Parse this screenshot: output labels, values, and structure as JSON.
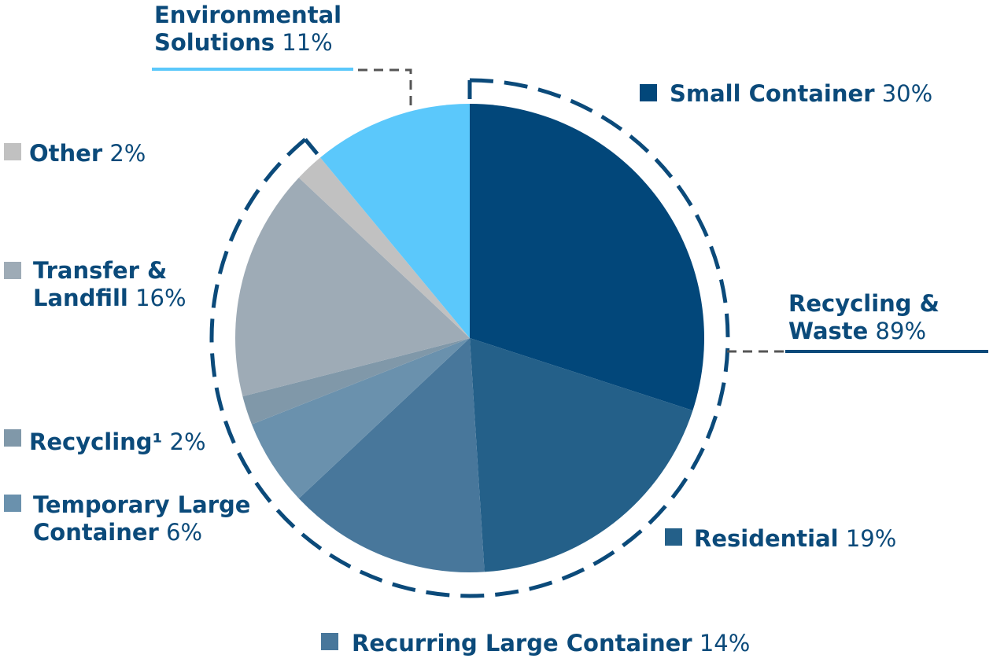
{
  "chart_data": {
    "type": "pie",
    "start": "12 o'clock, clockwise",
    "slices": [
      {
        "label": "Small Container",
        "value": 30,
        "display": "30%",
        "color": "#02477a"
      },
      {
        "label": "Residential",
        "value": 19,
        "display": "19%",
        "color": "#246089"
      },
      {
        "label": "Recurring Large Container",
        "value": 14,
        "display": "14%",
        "color": "#48779b"
      },
      {
        "label": "Temporary Large Container",
        "value": 6,
        "display": "6%",
        "color": "#6a91ad"
      },
      {
        "label": "Recycling¹",
        "value": 2,
        "display": "2%",
        "color": "#8098a9"
      },
      {
        "label": "Transfer & Landfill",
        "value": 16,
        "display": "16%",
        "color": "#9eabb6"
      },
      {
        "label": "Other",
        "value": 2,
        "display": "2%",
        "color": "#c1c1c1"
      },
      {
        "label": "Environmental Solutions",
        "value": 11,
        "display": "11%",
        "color": "#5bc8fb"
      }
    ],
    "groups": [
      {
        "label": "Recycling & Waste",
        "value": 89,
        "display": "89%",
        "color": "#0b4a7a"
      },
      {
        "label": "Environmental Solutions",
        "value": 11,
        "display": "11%",
        "color": "#5bc8fb"
      }
    ]
  },
  "labels": {
    "small_container": {
      "name": "Small Container",
      "pct": "30%"
    },
    "residential": {
      "name": "Residential",
      "pct": "19%"
    },
    "recurring_large": {
      "name": "Recurring Large Container",
      "pct": "14%"
    },
    "temporary_large": {
      "name1": "Temporary Large",
      "name2": "Container",
      "pct": "6%"
    },
    "recycling": {
      "name": "Recycling¹",
      "pct": "2%"
    },
    "transfer_landfill": {
      "name1": "Transfer &",
      "name2": "Landfill",
      "pct": "16%"
    },
    "other": {
      "name": "Other",
      "pct": "2%"
    },
    "environmental": {
      "name1": "Environmental",
      "name2": "Solutions",
      "pct": "11%"
    },
    "recycling_waste": {
      "name1": "Recycling &",
      "name2": "Waste",
      "pct": "89%"
    }
  },
  "colors": {
    "text": "#0b4a7a",
    "ring": "#0b4a7a",
    "leader": "#555555",
    "env_rule": "#5bc8fb"
  }
}
